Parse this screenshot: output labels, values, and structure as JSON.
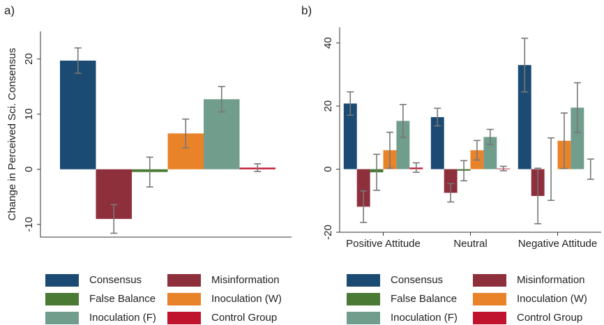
{
  "chart_data": [
    {
      "type": "bar",
      "panel": "a)",
      "ylabel": "Change in Perceived Sci. Consensus",
      "ylim": [
        -12.3,
        25
      ],
      "yticks": [
        -10,
        0,
        10,
        20
      ],
      "series": [
        {
          "name": "Consensus",
          "color": "#1b4a72",
          "values": [
            19.7
          ],
          "errors": [
            2.3
          ]
        },
        {
          "name": "Misinformation",
          "color": "#8e2f3c",
          "values": [
            -9.0
          ],
          "errors": [
            2.6
          ]
        },
        {
          "name": "False Balance",
          "color": "#4b7a35",
          "values": [
            -0.5
          ],
          "errors": [
            2.7
          ]
        },
        {
          "name": "Inoculation (W)",
          "color": "#e8832a",
          "values": [
            6.5
          ],
          "errors": [
            2.6
          ]
        },
        {
          "name": "Inoculation (F)",
          "color": "#709d8c",
          "values": [
            12.7
          ],
          "errors": [
            2.3
          ]
        },
        {
          "name": "Control Group",
          "color": "#c0142e",
          "values": [
            0.3
          ],
          "errors": [
            0.7
          ]
        }
      ]
    },
    {
      "type": "bar",
      "panel": "b)",
      "categories": [
        "Positive Attitude",
        "Neutral",
        "Negative Attitude"
      ],
      "ylim": [
        -20,
        45
      ],
      "yticks": [
        -20,
        0,
        20,
        40
      ],
      "series": [
        {
          "name": "Consensus",
          "color": "#1b4a72",
          "values": [
            20.8,
            16.5,
            33
          ],
          "errors": [
            3.7,
            2.8,
            8.5
          ]
        },
        {
          "name": "Misinformation",
          "color": "#8e2f3c",
          "values": [
            -11.9,
            -7.5,
            -8.5
          ],
          "errors": [
            5,
            2.9,
            8.8
          ]
        },
        {
          "name": "False Balance",
          "color": "#4b7a35",
          "values": [
            -1,
            -0.5,
            0
          ],
          "errors": [
            5.7,
            3.2,
            9.9
          ]
        },
        {
          "name": "Inoculation (W)",
          "color": "#e8832a",
          "values": [
            6,
            6,
            9
          ],
          "errors": [
            5.7,
            3.1,
            8.8
          ]
        },
        {
          "name": "Inoculation (F)",
          "color": "#709d8c",
          "values": [
            15.3,
            10.2,
            19.5
          ],
          "errors": [
            5.2,
            2.4,
            7.9
          ]
        },
        {
          "name": "Control Group",
          "color": "#c0142e",
          "values": [
            0.5,
            0.2,
            0
          ],
          "errors": [
            1.5,
            0.7,
            3.2
          ]
        }
      ]
    }
  ]
}
